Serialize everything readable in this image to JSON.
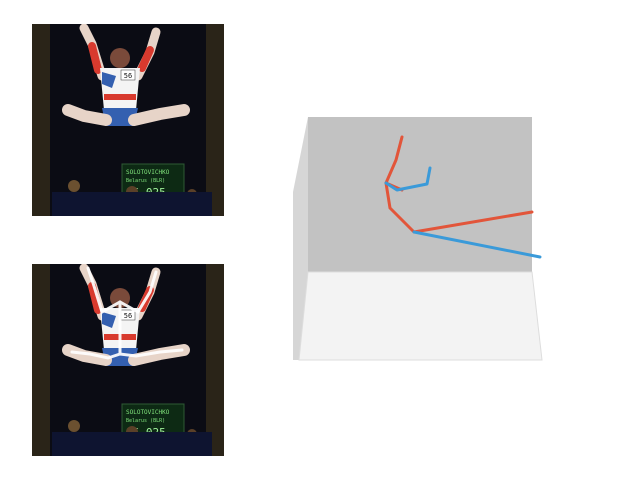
{
  "photos": [
    {
      "role": "input-frame",
      "jersey_number": "56",
      "scoreboard": {
        "name_line": "SOLOTOVICHKO",
        "country_line": "Belarus (BLR)",
        "score": "15.025"
      }
    },
    {
      "role": "frame-with-2d-skeleton-overlay",
      "jersey_number": "56",
      "scoreboard": {
        "name_line": "SOLOTOVICHKO",
        "country_line": "Belarus (BLR)",
        "score": "15.025"
      }
    }
  ],
  "pose_3d": {
    "colors": {
      "left_side": "#e2553a",
      "right_side": "#3a9ad9",
      "back_wall": "#c2c2c2",
      "floor": "#f2f2f2"
    }
  }
}
